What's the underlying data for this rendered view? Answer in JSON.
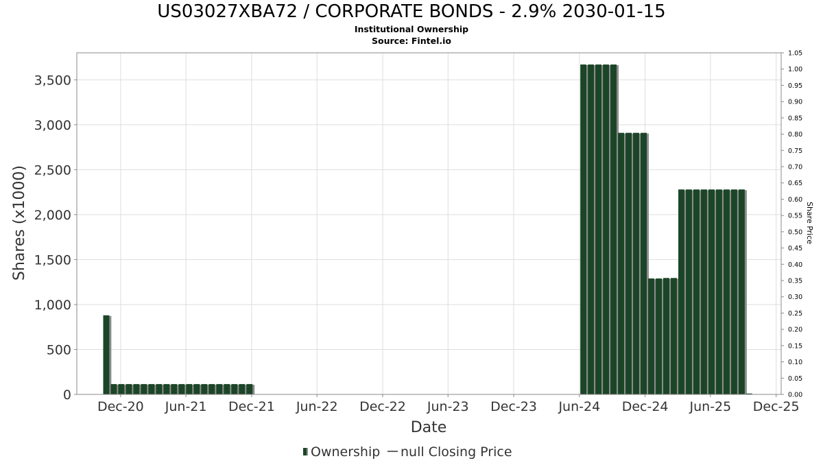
{
  "chart_data": {
    "type": "bar",
    "title": "US03027XBA72 / CORPORATE BONDS - 2.9% 2030-01-15",
    "subtitle": "Institutional Ownership",
    "source": "Source: Fintel.io",
    "xlabel": "Date",
    "ylabel": "Shares (x1000)",
    "y2label": "Share Price",
    "ylim": [
      0,
      3800
    ],
    "y2lim": [
      0,
      1.05
    ],
    "xlim": [
      "2020-08-01",
      "2025-12-15"
    ],
    "yticks": [
      0,
      500,
      1000,
      1500,
      2000,
      2500,
      3000,
      3500
    ],
    "ytick_labels": [
      "0",
      "500",
      "1,000",
      "1,500",
      "2,000",
      "2,500",
      "3,000",
      "3,500"
    ],
    "y2ticks": [
      0.0,
      0.05,
      0.1,
      0.15,
      0.2,
      0.25,
      0.3,
      0.35,
      0.4,
      0.45,
      0.5,
      0.55,
      0.6,
      0.65,
      0.7,
      0.75,
      0.8,
      0.85,
      0.9,
      0.95,
      1.0,
      1.05
    ],
    "y2tick_labels": [
      "0.00",
      "0.05",
      "0.10",
      "0.15",
      "0.20",
      "0.25",
      "0.30",
      "0.35",
      "0.40",
      "0.45",
      "0.50",
      "0.55",
      "0.60",
      "0.65",
      "0.70",
      "0.75",
      "0.80",
      "0.85",
      "0.90",
      "0.95",
      "1.00",
      "1.05"
    ],
    "xticks": [
      "2020-12-01",
      "2021-06-01",
      "2021-12-01",
      "2022-06-01",
      "2022-12-01",
      "2023-06-01",
      "2023-12-01",
      "2024-06-01",
      "2024-12-01",
      "2025-06-01",
      "2025-12-01"
    ],
    "xtick_labels": [
      "Dec-20",
      "Jun-21",
      "Dec-21",
      "Jun-22",
      "Dec-22",
      "Jun-23",
      "Dec-23",
      "Jun-24",
      "Dec-24",
      "Jun-25",
      "Dec-25"
    ],
    "grid": true,
    "legend_position": "bottom-center",
    "legend": [
      "Ownership",
      "null Closing Price"
    ],
    "colors": {
      "bar": "#1b4527",
      "bar_shadow": "#8c8c8c",
      "grid": "#dddddd",
      "axis": "#888888"
    },
    "series": [
      {
        "name": "Ownership",
        "x": [
          "2020-10-22",
          "2020-11-12",
          "2020-12-03",
          "2020-12-24",
          "2021-01-14",
          "2021-02-04",
          "2021-02-25",
          "2021-03-18",
          "2021-04-08",
          "2021-04-29",
          "2021-05-20",
          "2021-06-10",
          "2021-07-01",
          "2021-07-22",
          "2021-08-12",
          "2021-09-02",
          "2021-09-23",
          "2021-10-14",
          "2021-11-04",
          "2021-11-25",
          "2024-06-12",
          "2024-07-03",
          "2024-07-24",
          "2024-08-14",
          "2024-09-04",
          "2024-09-25",
          "2024-10-16",
          "2024-11-06",
          "2024-11-27",
          "2024-12-18",
          "2025-01-08",
          "2025-01-29",
          "2025-02-19",
          "2025-03-12",
          "2025-04-02",
          "2025-04-23",
          "2025-05-14",
          "2025-06-04",
          "2025-06-25",
          "2025-07-16",
          "2025-08-06",
          "2025-08-27",
          "2025-09-17"
        ],
        "values": [
          880,
          115,
          115,
          115,
          115,
          115,
          115,
          115,
          115,
          115,
          115,
          115,
          115,
          115,
          115,
          115,
          115,
          115,
          115,
          115,
          3670,
          3670,
          3670,
          3670,
          3670,
          2910,
          2910,
          2910,
          2910,
          1290,
          1290,
          1295,
          1295,
          2280,
          2280,
          2280,
          2280,
          2280,
          2280,
          2280,
          2280,
          2280,
          10
        ],
        "bar_width_days": 17
      }
    ]
  }
}
